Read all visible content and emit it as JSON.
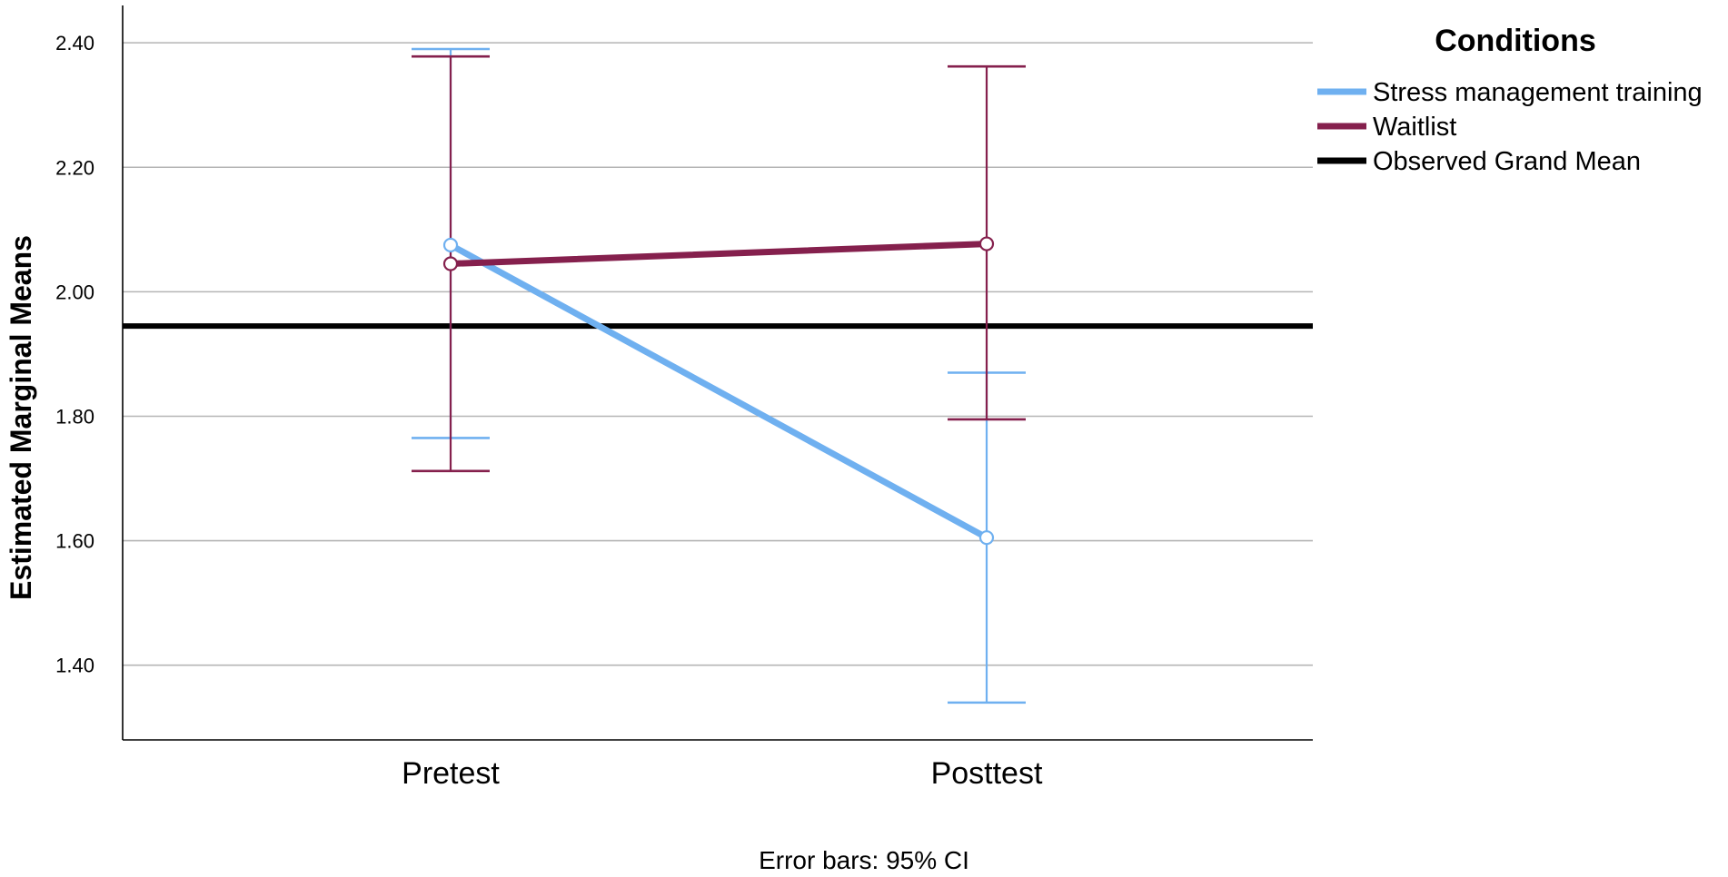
{
  "chart_data": {
    "type": "line",
    "categories": [
      "Pretest",
      "Posttest"
    ],
    "ylabel": "Estimated Marginal Means",
    "xlabel": "",
    "ylim": [
      1.28,
      2.46
    ],
    "yticks": [
      "1.40",
      "1.60",
      "1.80",
      "2.00",
      "2.20",
      "2.40"
    ],
    "grid": true,
    "legend_title": "Conditions",
    "legend_position": "top-right",
    "series": [
      {
        "name": "Stress management training",
        "color": "#6fb0f0",
        "values": [
          2.075,
          1.605
        ],
        "ci_lower": [
          1.765,
          1.34
        ],
        "ci_upper": [
          2.39,
          1.87
        ]
      },
      {
        "name": "Waitlist",
        "color": "#85204d",
        "values": [
          2.045,
          2.077
        ],
        "ci_lower": [
          1.712,
          1.795
        ],
        "ci_upper": [
          2.378,
          2.362
        ]
      }
    ],
    "reference_line": {
      "name": "Observed Grand Mean",
      "value": 1.945,
      "color": "#000000"
    },
    "footnote": "Error bars: 95% CI"
  }
}
